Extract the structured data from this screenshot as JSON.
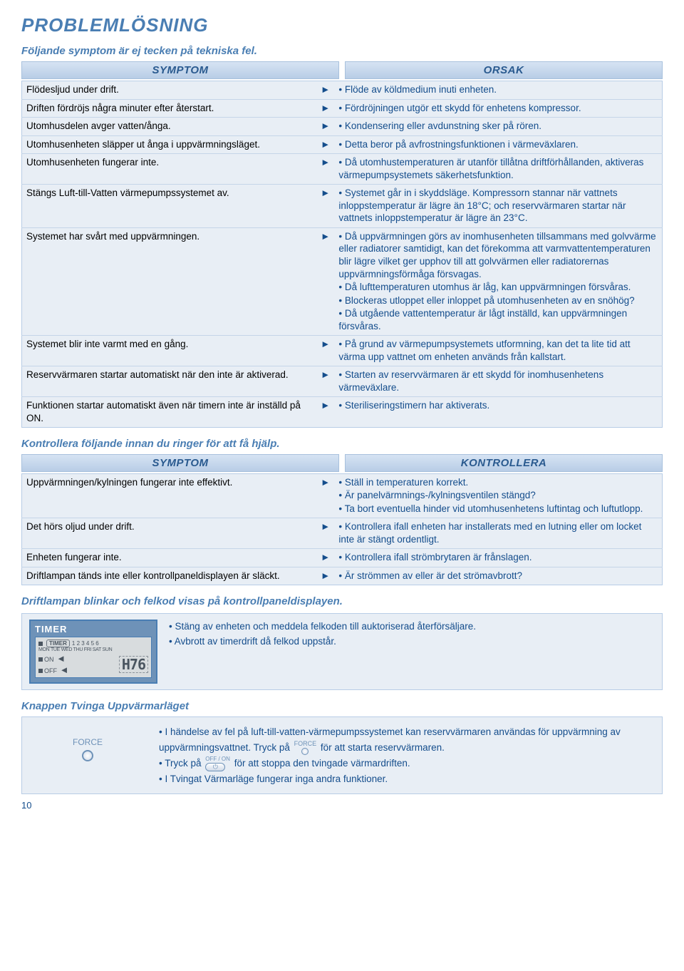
{
  "colors": {
    "heading": "#4a7eb3",
    "body_blue": "#144d8c",
    "panel_bg": "#e8eef5",
    "panel_border": "#b8cde6",
    "head_grad_top": "#d6e3f3",
    "head_grad_bot": "#b8cde6",
    "lcd_bg": "#6e92b8",
    "lcd_gray": "#d8dcde"
  },
  "page_title": "PROBLEMLÖSNING",
  "subtitle": "Följande symptom är ej tecken på tekniska fel.",
  "headers": {
    "symptom": "SYMPTOM",
    "orsak": "ORSAK",
    "kontrollera": "KONTROLLERA"
  },
  "table1": [
    {
      "symptom": "Flödesljud under drift.",
      "orsak": [
        "Flöde av köldmedium inuti enheten."
      ]
    },
    {
      "symptom": "Driften fördröjs några minuter efter återstart.",
      "orsak": [
        "Fördröjningen utgör ett skydd för enhetens kompressor."
      ]
    },
    {
      "symptom": "Utomhusdelen avger vatten/ånga.",
      "orsak": [
        "Kondensering eller avdunstning sker på rören."
      ]
    },
    {
      "symptom": "Utomhusenheten släpper ut ånga i uppvärmningsläget.",
      "orsak": [
        "Detta beror på avfrostningsfunktionen i värmeväxlaren."
      ]
    },
    {
      "symptom": "Utomhusenheten fungerar inte.",
      "orsak": [
        "Då utomhustemperaturen är utanför tillåtna driftförhållanden, aktiveras värmepumpsystemets säkerhetsfunktion."
      ]
    },
    {
      "symptom": "Stängs Luft-till-Vatten värmepumpssystemet av.",
      "orsak": [
        "Systemet går in i skyddsläge. Kompressorn stannar när vattnets inloppstemperatur är lägre än 18°C; och reservvärmaren startar när vattnets inloppstemperatur är lägre än 23°C."
      ]
    },
    {
      "symptom": "Systemet har svårt med uppvärmningen.",
      "orsak": [
        "Då uppvärmningen görs av inomhusenheten tillsammans med golvvärme eller radiatorer samtidigt, kan det förekomma att varmvattentemperaturen blir lägre vilket ger upphov till att golvvärmen eller radiatorernas uppvärmningsförmåga försvagas.",
        "Då lufttemperaturen utomhus är låg, kan uppvärmningen försvåras.",
        "Blockeras utloppet eller inloppet på utomhusenheten av en snöhög?",
        "Då utgående vattentemperatur är lågt inställd, kan uppvärmningen försvåras."
      ]
    },
    {
      "symptom": "Systemet blir inte varmt med en gång.",
      "orsak": [
        "På grund av värmepumpsystemets utformning, kan det ta lite tid att värma upp vattnet om enheten används från kallstart."
      ]
    },
    {
      "symptom": "Reservvärmaren startar automatiskt när den inte är aktiverad.",
      "orsak": [
        "Starten av reservvärmaren är ett skydd för inomhusenhetens värmeväxlare."
      ]
    },
    {
      "symptom": "Funktionen startar automatiskt även när timern inte är inställd på ON.",
      "orsak": [
        "Steriliseringstimern har aktiverats."
      ]
    }
  ],
  "section2_heading": "Kontrollera följande innan du ringer för att få hjälp.",
  "table2": [
    {
      "symptom": "Uppvärmningen/kylningen fungerar inte effektivt.",
      "kontrollera": [
        "Ställ in temperaturen korrekt.",
        "Är panelvärmnings-/kylningsventilen stängd?",
        "Ta bort eventuella hinder vid utomhusenhetens luftintag och luftutlopp."
      ]
    },
    {
      "symptom": "Det hörs oljud under drift.",
      "kontrollera": [
        "Kontrollera ifall enheten har installerats med en lutning eller om locket inte är stängt ordentligt."
      ]
    },
    {
      "symptom": "Enheten fungerar inte.",
      "kontrollera": [
        "Kontrollera ifall strömbrytaren är frånslagen."
      ]
    },
    {
      "symptom": "Driftlampan tänds inte eller kontrollpaneldisplayen är släckt.",
      "kontrollera": [
        "Är strömmen av eller är det strömavbrott?"
      ]
    }
  ],
  "section3_heading": "Driftlampan blinkar och felkod visas på kontrollpaneldisplayen.",
  "lcd": {
    "title": "TIMER",
    "badge": "TIMER",
    "nums": "1 2 3 4 5 6",
    "days": "MON TUE WED THU FRI SAT SUN",
    "on": "ON",
    "off": "OFF",
    "code": "H76"
  },
  "timer_bullets": [
    "Stäng av enheten och meddela felkoden till auktoriserad återförsäljare.",
    "Avbrott av timerdrift då felkod uppstår."
  ],
  "section4_heading": "Knappen Tvinga Uppvärmarläget",
  "force_label": "FORCE",
  "force_lines": {
    "l1a": "I händelse av fel på luft-till-vatten-värmepumpssystemet kan reservvärmaren användas för uppvärmning av uppvärmningsvattnet. Tryck på",
    "l1b": "för att starta reservvärmaren.",
    "l2a": "Tryck på",
    "l2b": "för att stoppa den tvingade värmardriften.",
    "l3": "I Tvingat Värmarläge fungerar inga andra funktioner."
  },
  "offon_label": "OFF / ON",
  "page_number": "10"
}
